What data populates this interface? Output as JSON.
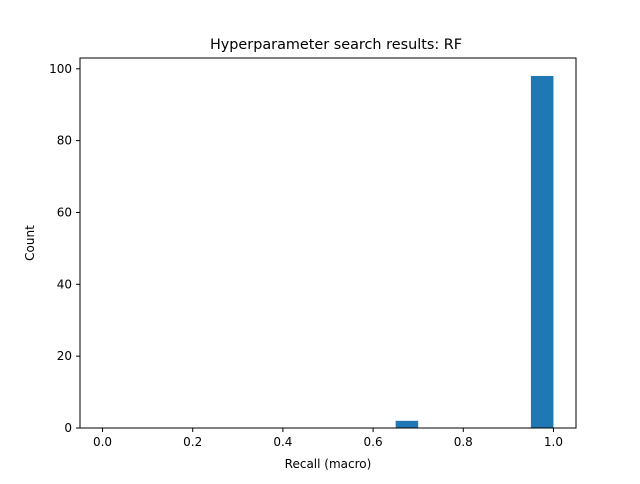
{
  "chart_data": {
    "type": "bar",
    "title": "Hyperparameter search results: RF",
    "xlabel": "Recall (macro)",
    "ylabel": "Count",
    "xlim": [
      -0.05,
      1.05
    ],
    "ylim": [
      0,
      103
    ],
    "xticks": [
      0.0,
      0.2,
      0.4,
      0.6,
      0.8,
      1.0
    ],
    "xtick_labels": [
      "0.0",
      "0.2",
      "0.4",
      "0.6",
      "0.8",
      "1.0"
    ],
    "yticks": [
      0,
      20,
      40,
      60,
      80,
      100
    ],
    "ytick_labels": [
      "0",
      "20",
      "40",
      "60",
      "80",
      "100"
    ],
    "bin_edges": [
      0.0,
      0.05,
      0.1,
      0.15,
      0.2,
      0.25,
      0.3,
      0.35,
      0.4,
      0.45,
      0.5,
      0.55,
      0.6,
      0.65,
      0.7,
      0.75,
      0.8,
      0.85,
      0.9,
      0.95,
      1.0
    ],
    "values": [
      0,
      0,
      0,
      0,
      0,
      0,
      0,
      0,
      0,
      0,
      0,
      0,
      0,
      2,
      0,
      0,
      0,
      0,
      0,
      98
    ],
    "color": "#1f77b4",
    "grid": false,
    "legend": false
  }
}
